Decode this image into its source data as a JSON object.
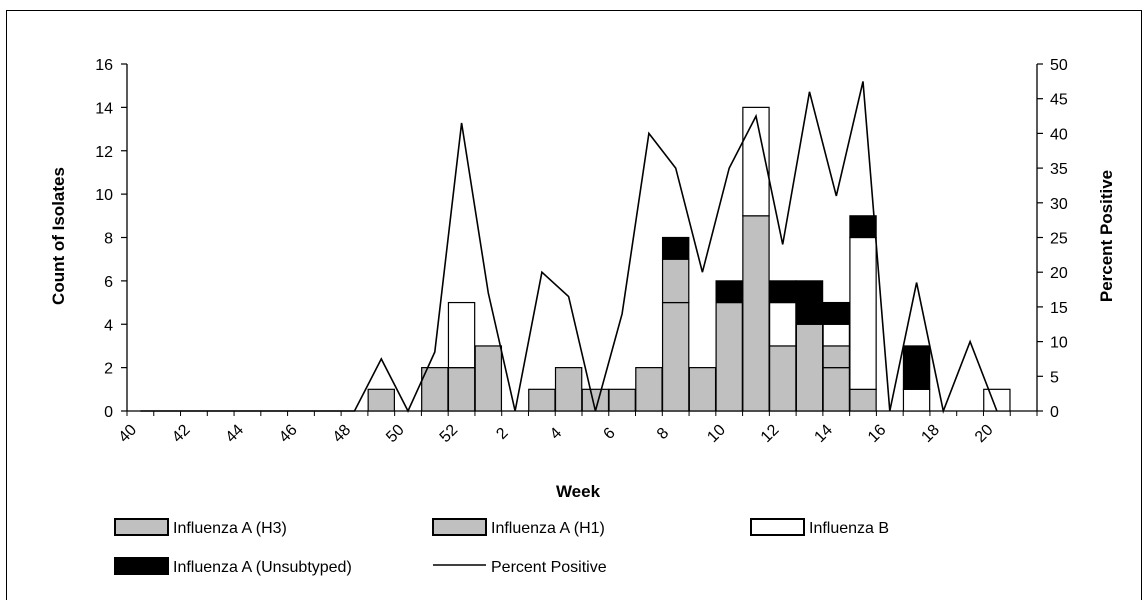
{
  "chart_data": {
    "type": "bar",
    "stacked": true,
    "xlabel": "Week",
    "ylabel": "Count of Isolates",
    "y2label": "Percent Positive",
    "ylim": [
      0,
      16
    ],
    "y2lim": [
      0,
      50
    ],
    "yticks": [
      0,
      2,
      4,
      6,
      8,
      10,
      12,
      14,
      16
    ],
    "y2ticks": [
      0,
      5,
      10,
      15,
      20,
      25,
      30,
      35,
      40,
      45,
      50
    ],
    "xtick_labels": [
      "40",
      "42",
      "44",
      "46",
      "48",
      "50",
      "52",
      "2",
      "4",
      "6",
      "8",
      "10",
      "12",
      "14",
      "16",
      "18",
      "20"
    ],
    "weeks": [
      "40",
      "41",
      "42",
      "43",
      "44",
      "45",
      "46",
      "47",
      "48",
      "49",
      "50",
      "51",
      "52",
      "53",
      "1",
      "2",
      "3",
      "4",
      "5",
      "6",
      "7",
      "8",
      "9",
      "10",
      "11",
      "12",
      "13",
      "14",
      "15",
      "16",
      "17",
      "18",
      "19",
      "20"
    ],
    "series": [
      {
        "name": "Influenza A (H3)",
        "color": "#c0c0c0",
        "values": [
          0,
          0,
          0,
          0,
          0,
          0,
          0,
          0,
          0,
          1,
          0,
          2,
          2,
          3,
          0,
          1,
          2,
          1,
          1,
          2,
          5,
          2,
          5,
          9,
          3,
          4,
          2,
          1,
          0,
          0,
          0,
          0,
          0,
          0
        ]
      },
      {
        "name": "Influenza A (H1)",
        "color": "#c0c0c0",
        "values": [
          0,
          0,
          0,
          0,
          0,
          0,
          0,
          0,
          0,
          0,
          0,
          0,
          0,
          0,
          0,
          0,
          0,
          0,
          0,
          0,
          2,
          0,
          0,
          0,
          0,
          0,
          1,
          0,
          0,
          0,
          0,
          0,
          0,
          0
        ]
      },
      {
        "name": "Influenza B",
        "color": "#ffffff",
        "values": [
          0,
          0,
          0,
          0,
          0,
          0,
          0,
          0,
          0,
          0,
          0,
          0,
          3,
          0,
          0,
          0,
          0,
          0,
          0,
          0,
          0,
          0,
          0,
          5,
          2,
          0,
          1,
          7,
          0,
          1,
          0,
          0,
          1,
          0
        ]
      },
      {
        "name": "Influenza A (Unsubtyped)",
        "color": "#000000",
        "values": [
          0,
          0,
          0,
          0,
          0,
          0,
          0,
          0,
          0,
          0,
          0,
          0,
          0,
          0,
          0,
          0,
          0,
          0,
          0,
          0,
          1,
          0,
          1,
          0,
          1,
          2,
          1,
          1,
          0,
          2,
          0,
          0,
          0,
          0
        ]
      },
      {
        "name": "Percent Positive",
        "type": "line",
        "axis": "right",
        "color": "#000000",
        "values": [
          0,
          0,
          0,
          0,
          0,
          0,
          0,
          0,
          0,
          7.5,
          0,
          8.5,
          41.5,
          17,
          0,
          20,
          16.5,
          0,
          14,
          40,
          35,
          20,
          35,
          42.5,
          24,
          46,
          31,
          47.5,
          0,
          18.5,
          0,
          10,
          0,
          null
        ]
      }
    ],
    "legend": [
      {
        "label": "Influenza A (H3)",
        "swatch": "gray"
      },
      {
        "label": "Influenza A (H1)",
        "swatch": "gray"
      },
      {
        "label": "Influenza B",
        "swatch": "white"
      },
      {
        "label": "Influenza A (Unsubtyped)",
        "swatch": "black"
      },
      {
        "label": "Percent Positive",
        "swatch": "line"
      }
    ],
    "legend_position": "bottom"
  }
}
